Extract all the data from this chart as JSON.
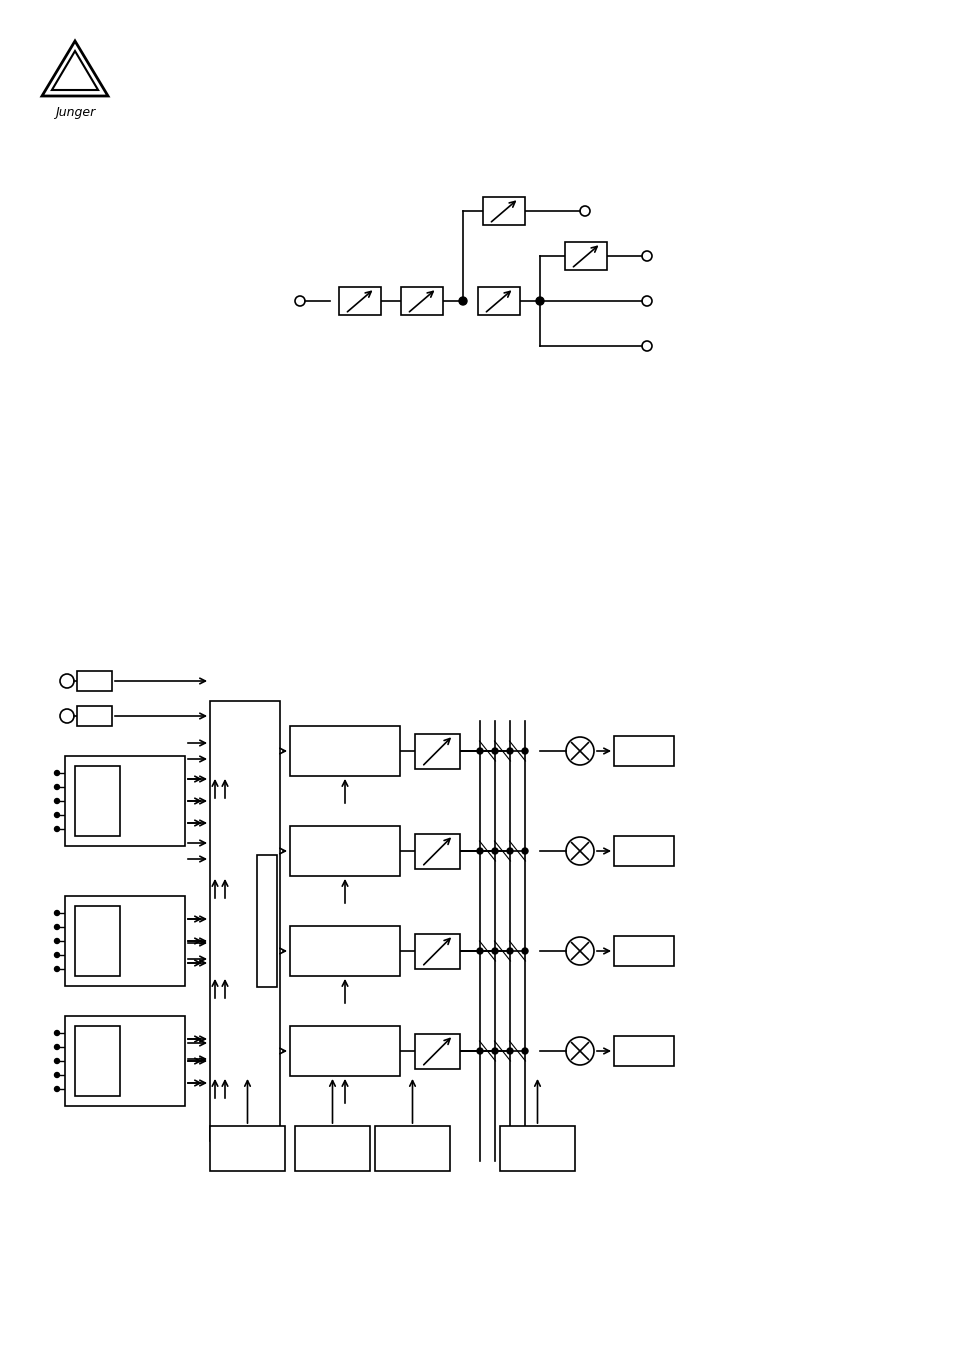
{
  "bg_color": "#ffffff",
  "line_color": "#000000",
  "fig_width": 9.54,
  "fig_height": 13.51,
  "dpi": 100
}
